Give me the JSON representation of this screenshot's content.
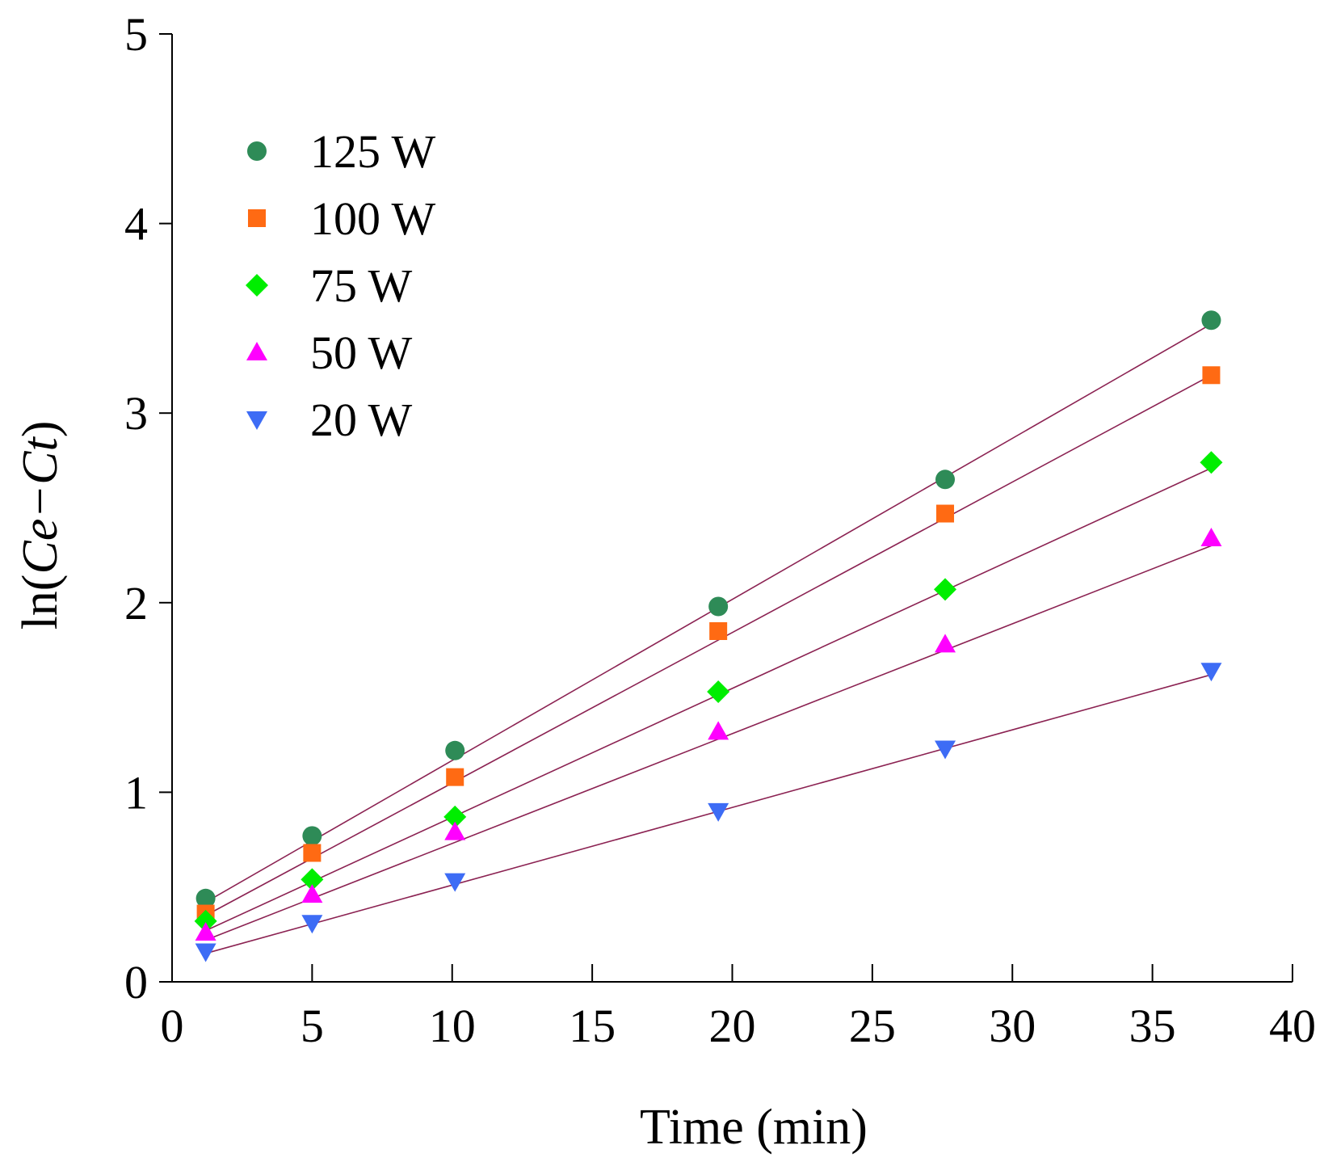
{
  "chart_data": {
    "type": "scatter",
    "title": "",
    "xlabel": "Time (min)",
    "ylabel": {
      "prefix": "ln",
      "inner": "Ce−Ct"
    },
    "xlim": [
      0,
      40
    ],
    "ylim": [
      0,
      5
    ],
    "xticks": [
      0,
      5,
      10,
      15,
      20,
      25,
      30,
      35,
      40
    ],
    "yticks": [
      0,
      1,
      2,
      3,
      4,
      5
    ],
    "grid": false,
    "legend_position": "top-left",
    "x": [
      1.2,
      5.0,
      10.1,
      19.5,
      27.6,
      37.1
    ],
    "series": [
      {
        "name": "125 W",
        "marker": "circle",
        "color": "#2e8b57",
        "values": [
          0.44,
          0.77,
          1.22,
          1.98,
          2.65,
          3.49
        ],
        "fit": [
          0.42,
          3.47
        ]
      },
      {
        "name": "100 W",
        "marker": "square",
        "color": "#ff6a13",
        "values": [
          0.36,
          0.68,
          1.08,
          1.85,
          2.47,
          3.2
        ],
        "fit": [
          0.35,
          3.2
        ]
      },
      {
        "name": "75 W",
        "marker": "diamond",
        "color": "#00ee00",
        "values": [
          0.32,
          0.54,
          0.87,
          1.53,
          2.07,
          2.74
        ],
        "fit": [
          0.27,
          2.71
        ]
      },
      {
        "name": "50 W",
        "marker": "triangle-up",
        "color": "#ff00ff",
        "values": [
          0.26,
          0.46,
          0.79,
          1.32,
          1.78,
          2.34
        ],
        "fit": [
          0.22,
          2.3
        ]
      },
      {
        "name": "20 W",
        "marker": "triangle-down",
        "color": "#3d6cf5",
        "values": [
          0.16,
          0.31,
          0.53,
          0.9,
          1.23,
          1.64
        ],
        "fit": [
          0.15,
          1.62
        ]
      }
    ]
  }
}
